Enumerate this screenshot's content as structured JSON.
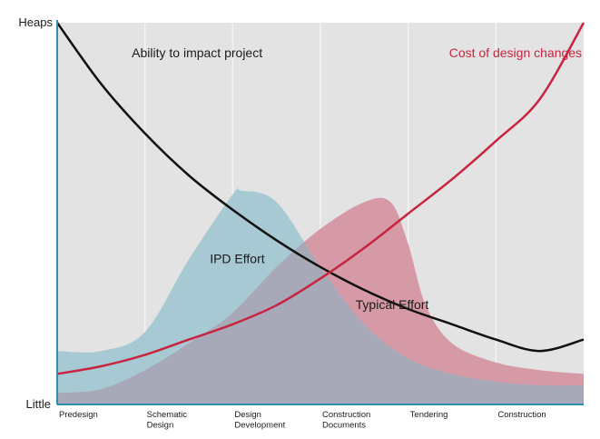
{
  "colors": {
    "plot_background": "#e3e3e3",
    "grid": "#f4f4f4",
    "axis": "#2a8fb0",
    "ability_line": "#111111",
    "cost_line": "#c8243f",
    "ipd_fill": "#a7c9d4",
    "typical_fill": "#d69aa6",
    "overlap_fill": "#a7a9b8"
  },
  "chart_data": {
    "type": "area",
    "xlabel": "",
    "ylabel": "",
    "y_top_label": "Heaps",
    "y_bottom_label": "Little",
    "xlim": [
      0,
      6
    ],
    "ylim": [
      0,
      1
    ],
    "grid": "vertical",
    "categories": [
      {
        "lines": [
          "Predesign"
        ]
      },
      {
        "lines": [
          "Schematic",
          "Design"
        ]
      },
      {
        "lines": [
          "Design",
          "Development"
        ]
      },
      {
        "lines": [
          "Construction",
          "Documents"
        ]
      },
      {
        "lines": [
          "Tendering"
        ]
      },
      {
        "lines": [
          "Construction"
        ]
      }
    ],
    "series": [
      {
        "name": "Ability to impact project",
        "kind": "line",
        "x": [
          0,
          0.5,
          1,
          1.5,
          2,
          2.5,
          3,
          3.5,
          4,
          4.5,
          5,
          5.5,
          6
        ],
        "y": [
          1.0,
          0.84,
          0.71,
          0.6,
          0.51,
          0.43,
          0.36,
          0.3,
          0.25,
          0.21,
          0.17,
          0.14,
          0.17
        ]
      },
      {
        "name": "Cost of design changes",
        "kind": "line",
        "x": [
          0,
          0.5,
          1,
          1.5,
          2,
          2.5,
          3,
          3.5,
          4,
          4.5,
          5,
          5.5,
          6
        ],
        "y": [
          0.08,
          0.1,
          0.13,
          0.17,
          0.21,
          0.26,
          0.33,
          0.41,
          0.5,
          0.59,
          0.69,
          0.8,
          1.0
        ]
      },
      {
        "name": "IPD Effort",
        "kind": "area",
        "x": [
          0,
          0.5,
          1,
          1.5,
          2,
          2.1,
          2.5,
          3,
          3.5,
          4,
          4.5,
          5,
          5.5,
          6
        ],
        "y": [
          0.14,
          0.14,
          0.19,
          0.38,
          0.55,
          0.56,
          0.53,
          0.36,
          0.21,
          0.12,
          0.08,
          0.06,
          0.05,
          0.05
        ]
      },
      {
        "name": "Typical Effort",
        "kind": "area",
        "x": [
          0,
          0.5,
          1,
          1.5,
          2,
          2.5,
          3,
          3.5,
          3.8,
          4,
          4.2,
          4.5,
          5,
          5.5,
          6
        ],
        "y": [
          0.03,
          0.04,
          0.09,
          0.16,
          0.24,
          0.36,
          0.46,
          0.53,
          0.53,
          0.42,
          0.26,
          0.16,
          0.11,
          0.09,
          0.08
        ]
      }
    ],
    "annotations": [
      {
        "text": "Ability to impact project",
        "x": 0.85,
        "y": 0.91,
        "anchor": "start",
        "style": "dark"
      },
      {
        "text": "Cost of design changes",
        "x": 5.98,
        "y": 0.91,
        "anchor": "end",
        "style": "red"
      },
      {
        "text": "IPD Effort",
        "x": 1.74,
        "y": 0.37,
        "anchor": "start",
        "style": "dark"
      },
      {
        "text": "Typical Effort",
        "x": 3.4,
        "y": 0.25,
        "anchor": "start",
        "style": "dark"
      }
    ]
  }
}
